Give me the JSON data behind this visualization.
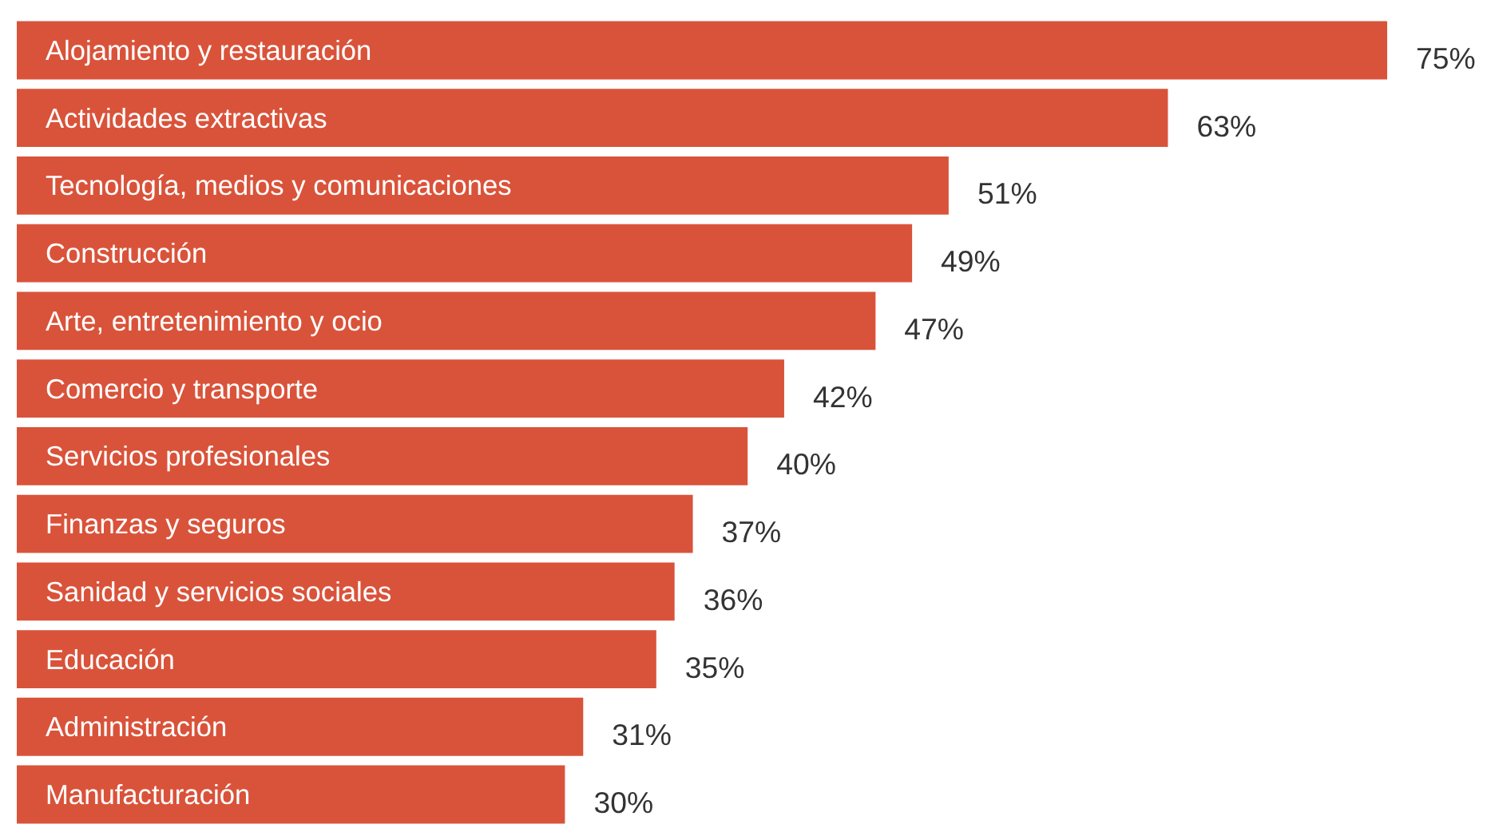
{
  "chart_data": {
    "type": "bar",
    "orientation": "horizontal",
    "categories": [
      "Alojamiento y restauración",
      "Actividades extractivas",
      "Tecnología, medios y comunicaciones",
      "Construcción",
      "Arte, entretenimiento y ocio",
      "Comercio y transporte",
      "Servicios profesionales",
      "Finanzas y seguros",
      "Sanidad y servicios sociales",
      "Educación",
      "Administración",
      "Manufacturación"
    ],
    "values": [
      75,
      63,
      51,
      49,
      47,
      42,
      40,
      37,
      36,
      35,
      31,
      30
    ],
    "value_labels": [
      "75%",
      "63%",
      "51%",
      "49%",
      "47%",
      "42%",
      "40%",
      "37%",
      "36%",
      "35%",
      "31%",
      "30%"
    ],
    "color": "#d9533a",
    "grid": false
  }
}
